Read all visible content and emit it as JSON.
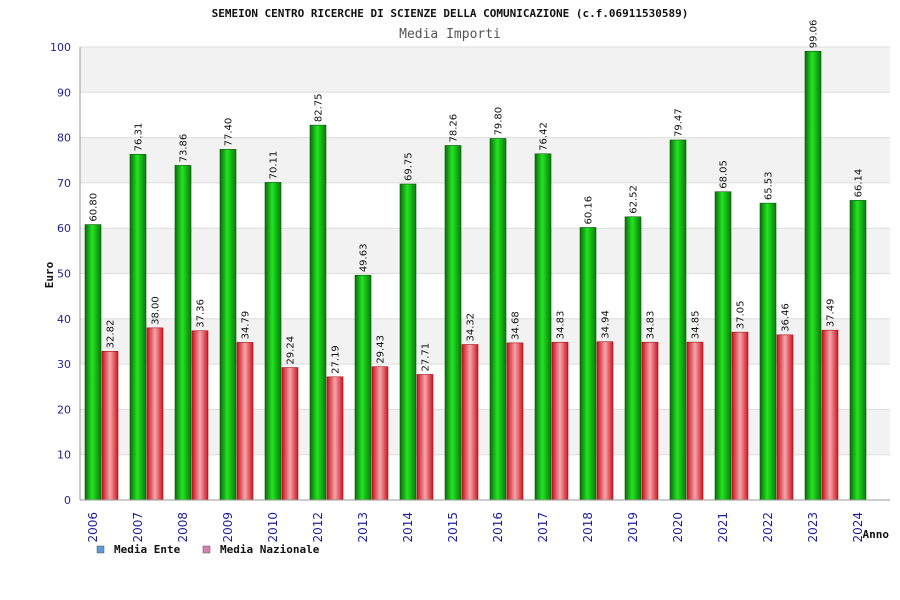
{
  "chart_data": {
    "type": "bar",
    "title": "SEMEION CENTRO RICERCHE DI SCIENZE DELLA COMUNICAZIONE (c.f.06911530589)",
    "subtitle": "Media Importi",
    "ylabel": "Euro",
    "xlabel": "Anno",
    "ylim": [
      0,
      100
    ],
    "yticks": [
      0,
      10,
      20,
      30,
      40,
      50,
      60,
      70,
      80,
      90,
      100
    ],
    "grid": true,
    "legend_position": "bottom-left",
    "categories": [
      "2006",
      "2007",
      "2008",
      "2009",
      "2010",
      "2012",
      "2013",
      "2014",
      "2015",
      "2016",
      "2017",
      "2018",
      "2019",
      "2020",
      "2021",
      "2022",
      "2023",
      "2024"
    ],
    "series": [
      {
        "name": "Media Ente",
        "legend_color": "#5b9bd5",
        "color": "#16c016",
        "values": [
          60.8,
          76.31,
          73.86,
          77.4,
          70.11,
          82.75,
          49.63,
          69.75,
          78.26,
          79.8,
          76.42,
          60.16,
          62.52,
          79.47,
          68.05,
          65.53,
          99.06,
          66.14
        ],
        "labels": [
          "60.80",
          "76.31",
          "73.86",
          "77.40",
          "70.11",
          "82.75",
          "49.63",
          "69.75",
          "78.26",
          "79.80",
          "76.42",
          "60.16",
          "62.52",
          "79.47",
          "68.05",
          "65.53",
          "99.06",
          "66.14"
        ]
      },
      {
        "name": "Media Nazionale",
        "legend_color": "#d97fb3",
        "color": "#e8303a",
        "values": [
          32.82,
          38.0,
          37.36,
          34.79,
          29.24,
          27.19,
          29.43,
          27.71,
          34.32,
          34.68,
          34.83,
          34.94,
          34.83,
          34.85,
          37.05,
          36.46,
          37.49,
          null
        ],
        "labels": [
          "32.82",
          "38.00",
          "37.36",
          "34.79",
          "29.24",
          "27.19",
          "29.43",
          "27.71",
          "34.32",
          "34.68",
          "34.83",
          "34.94",
          "34.83",
          "34.85",
          "37.05",
          "36.46",
          "37.49",
          ""
        ]
      }
    ]
  }
}
